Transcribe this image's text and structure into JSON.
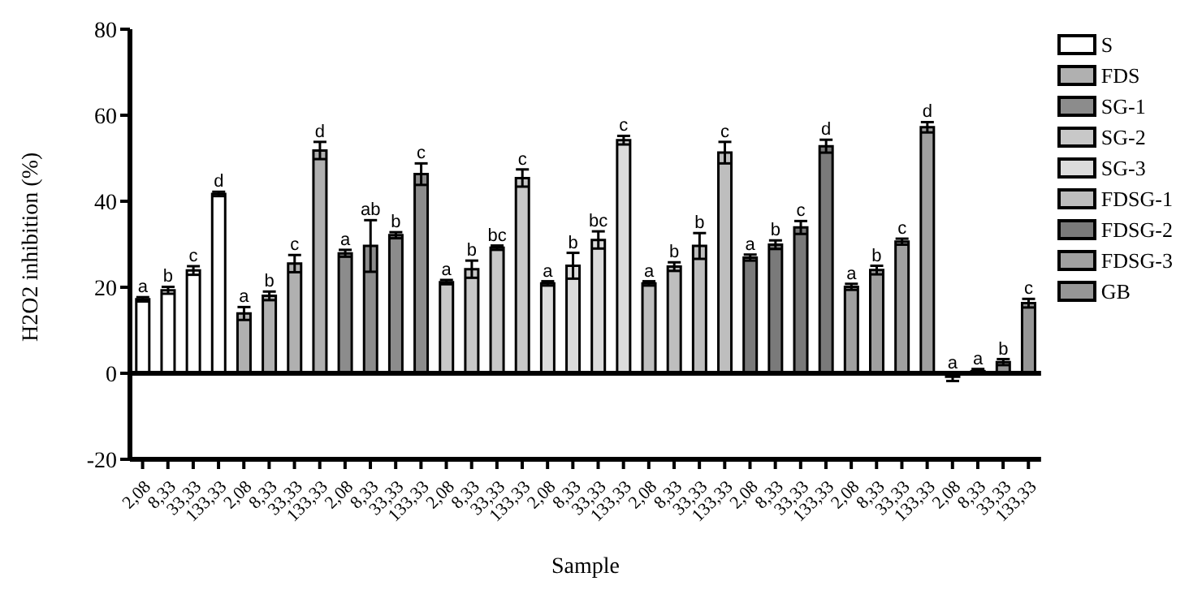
{
  "chart_data": {
    "type": "bar",
    "stacked": true,
    "xlabel": "Sample",
    "ylabel": "H2O2 inhibition (%)",
    "categories": [
      "2,08",
      "8,33",
      "33,33",
      "133,33",
      "2,08",
      "8,33",
      "33,33",
      "133,33",
      "2,08",
      "8,33",
      "33,33",
      "133,33",
      "2,08",
      "8,33",
      "33,33",
      "133,33",
      "2,08",
      "8,33",
      "33,33",
      "133,33",
      "2,08",
      "8,33",
      "33,33",
      "133,33",
      "2,08",
      "8,33",
      "33,33",
      "133,33",
      "2,08",
      "8,33",
      "33,33",
      "133,33",
      "2,08",
      "8,33",
      "33,33",
      "133,33"
    ],
    "ylim": [
      -20,
      80
    ],
    "yticks": [
      -20,
      0,
      20,
      40,
      60,
      80
    ],
    "grid": false,
    "legend": "top right",
    "ref_lines": [
      {
        "axis": "y",
        "value": 0
      }
    ],
    "series": [
      {
        "name": "S",
        "color": "#ffffff",
        "values": [
          17.2,
          19.3,
          23.9,
          41.7,
          null,
          null,
          null,
          null,
          null,
          null,
          null,
          null,
          null,
          null,
          null,
          null,
          null,
          null,
          null,
          null,
          null,
          null,
          null,
          null,
          null,
          null,
          null,
          null,
          null,
          null,
          null,
          null,
          null,
          null,
          null,
          null
        ],
        "errors": [
          0.5,
          0.8,
          1,
          0.5,
          null,
          null,
          null,
          null,
          null,
          null,
          null,
          null,
          null,
          null,
          null,
          null,
          null,
          null,
          null,
          null,
          null,
          null,
          null,
          null,
          null,
          null,
          null,
          null,
          null,
          null,
          null,
          null,
          null,
          null,
          null,
          null
        ],
        "value_labels": [
          "a",
          "b",
          "c",
          "d",
          null,
          null,
          null,
          null,
          null,
          null,
          null,
          null,
          null,
          null,
          null,
          null,
          null,
          null,
          null,
          null,
          null,
          null,
          null,
          null,
          null,
          null,
          null,
          null,
          null,
          null,
          null,
          null,
          null,
          null,
          null,
          null
        ]
      },
      {
        "name": "FDS",
        "color": "#b0b0b0",
        "values": [
          null,
          null,
          null,
          null,
          13.9,
          18.0,
          25.5,
          51.8,
          null,
          null,
          null,
          null,
          null,
          null,
          null,
          null,
          null,
          null,
          null,
          null,
          null,
          null,
          null,
          null,
          null,
          null,
          null,
          null,
          null,
          null,
          null,
          null,
          null,
          null,
          null,
          null
        ],
        "errors": [
          null,
          null,
          null,
          null,
          1.5,
          1,
          2,
          2,
          null,
          null,
          null,
          null,
          null,
          null,
          null,
          null,
          null,
          null,
          null,
          null,
          null,
          null,
          null,
          null,
          null,
          null,
          null,
          null,
          null,
          null,
          null,
          null,
          null,
          null,
          null,
          null
        ],
        "value_labels": [
          null,
          null,
          null,
          null,
          "a",
          "b",
          "c",
          "d",
          null,
          null,
          null,
          null,
          null,
          null,
          null,
          null,
          null,
          null,
          null,
          null,
          null,
          null,
          null,
          null,
          null,
          null,
          null,
          null,
          null,
          null,
          null,
          null,
          null,
          null,
          null,
          null
        ]
      },
      {
        "name": "SG-1",
        "color": "#8c8c8c",
        "values": [
          null,
          null,
          null,
          null,
          null,
          null,
          null,
          null,
          27.9,
          29.6,
          32.1,
          46.3,
          null,
          null,
          null,
          null,
          null,
          null,
          null,
          null,
          null,
          null,
          null,
          null,
          null,
          null,
          null,
          null,
          null,
          null,
          null,
          null,
          null,
          null,
          null,
          null
        ],
        "errors": [
          null,
          null,
          null,
          null,
          null,
          null,
          null,
          null,
          0.8,
          6,
          0.7,
          2.5,
          null,
          null,
          null,
          null,
          null,
          null,
          null,
          null,
          null,
          null,
          null,
          null,
          null,
          null,
          null,
          null,
          null,
          null,
          null,
          null,
          null,
          null,
          null,
          null
        ],
        "value_labels": [
          null,
          null,
          null,
          null,
          null,
          null,
          null,
          null,
          "a",
          "ab",
          "b",
          "c",
          null,
          null,
          null,
          null,
          null,
          null,
          null,
          null,
          null,
          null,
          null,
          null,
          null,
          null,
          null,
          null,
          null,
          null,
          null,
          null,
          null,
          null,
          null,
          null
        ]
      },
      {
        "name": "SG-2",
        "color": "#c8c8c8",
        "values": [
          null,
          null,
          null,
          null,
          null,
          null,
          null,
          null,
          null,
          null,
          null,
          null,
          21.2,
          24.2,
          29.2,
          45.4,
          null,
          null,
          null,
          null,
          null,
          null,
          null,
          null,
          null,
          null,
          null,
          null,
          null,
          null,
          null,
          null,
          null,
          null,
          null,
          null
        ],
        "errors": [
          null,
          null,
          null,
          null,
          null,
          null,
          null,
          null,
          null,
          null,
          null,
          null,
          0.5,
          2,
          0.5,
          2,
          null,
          null,
          null,
          null,
          null,
          null,
          null,
          null,
          null,
          null,
          null,
          null,
          null,
          null,
          null,
          null,
          null,
          null,
          null,
          null
        ],
        "value_labels": [
          null,
          null,
          null,
          null,
          null,
          null,
          null,
          null,
          null,
          null,
          null,
          null,
          "a",
          "b",
          "bc",
          "c",
          null,
          null,
          null,
          null,
          null,
          null,
          null,
          null,
          null,
          null,
          null,
          null,
          null,
          null,
          null,
          null,
          null,
          null,
          null,
          null
        ]
      },
      {
        "name": "SG-3",
        "color": "#dcdcdc",
        "values": [
          null,
          null,
          null,
          null,
          null,
          null,
          null,
          null,
          null,
          null,
          null,
          null,
          null,
          null,
          null,
          null,
          20.9,
          25.0,
          31.0,
          54.2,
          null,
          null,
          null,
          null,
          null,
          null,
          null,
          null,
          null,
          null,
          null,
          null,
          null,
          null,
          null,
          null
        ],
        "errors": [
          null,
          null,
          null,
          null,
          null,
          null,
          null,
          null,
          null,
          null,
          null,
          null,
          null,
          null,
          null,
          null,
          0.5,
          3,
          2,
          1,
          null,
          null,
          null,
          null,
          null,
          null,
          null,
          null,
          null,
          null,
          null,
          null,
          null,
          null,
          null,
          null
        ],
        "value_labels": [
          null,
          null,
          null,
          null,
          null,
          null,
          null,
          null,
          null,
          null,
          null,
          null,
          null,
          null,
          null,
          null,
          "a",
          "b",
          "bc",
          "c",
          null,
          null,
          null,
          null,
          null,
          null,
          null,
          null,
          null,
          null,
          null,
          null,
          null,
          null,
          null,
          null
        ]
      },
      {
        "name": "FDSG-1",
        "color": "#bebebe",
        "values": [
          null,
          null,
          null,
          null,
          null,
          null,
          null,
          null,
          null,
          null,
          null,
          null,
          null,
          null,
          null,
          null,
          null,
          null,
          null,
          null,
          20.9,
          24.8,
          29.6,
          51.3,
          null,
          null,
          null,
          null,
          null,
          null,
          null,
          null,
          null,
          null,
          null,
          null
        ],
        "errors": [
          null,
          null,
          null,
          null,
          null,
          null,
          null,
          null,
          null,
          null,
          null,
          null,
          null,
          null,
          null,
          null,
          null,
          null,
          null,
          null,
          0.5,
          1,
          3,
          2.5,
          null,
          null,
          null,
          null,
          null,
          null,
          null,
          null,
          null,
          null,
          null,
          null
        ],
        "value_labels": [
          null,
          null,
          null,
          null,
          null,
          null,
          null,
          null,
          null,
          null,
          null,
          null,
          null,
          null,
          null,
          null,
          null,
          null,
          null,
          null,
          "a",
          "b",
          "b",
          "c",
          null,
          null,
          null,
          null,
          null,
          null,
          null,
          null,
          null,
          null,
          null,
          null
        ]
      },
      {
        "name": "FDSG-2",
        "color": "#7a7a7a",
        "values": [
          null,
          null,
          null,
          null,
          null,
          null,
          null,
          null,
          null,
          null,
          null,
          null,
          null,
          null,
          null,
          null,
          null,
          null,
          null,
          null,
          null,
          null,
          null,
          null,
          26.9,
          29.9,
          33.9,
          52.8,
          null,
          null,
          null,
          null,
          null,
          null,
          null,
          null
        ],
        "errors": [
          null,
          null,
          null,
          null,
          null,
          null,
          null,
          null,
          null,
          null,
          null,
          null,
          null,
          null,
          null,
          null,
          null,
          null,
          null,
          null,
          null,
          null,
          null,
          null,
          0.7,
          1,
          1.5,
          1.5,
          null,
          null,
          null,
          null,
          null,
          null,
          null,
          null
        ],
        "value_labels": [
          null,
          null,
          null,
          null,
          null,
          null,
          null,
          null,
          null,
          null,
          null,
          null,
          null,
          null,
          null,
          null,
          null,
          null,
          null,
          null,
          null,
          null,
          null,
          null,
          "a",
          "b",
          "c",
          "d",
          null,
          null,
          null,
          null,
          null,
          null,
          null,
          null
        ]
      },
      {
        "name": "FDSG-3",
        "color": "#a0a0a0",
        "values": [
          null,
          null,
          null,
          null,
          null,
          null,
          null,
          null,
          null,
          null,
          null,
          null,
          null,
          null,
          null,
          null,
          null,
          null,
          null,
          null,
          null,
          null,
          null,
          null,
          null,
          null,
          null,
          null,
          20.1,
          24.0,
          30.6,
          57.2,
          null,
          null,
          null,
          null
        ],
        "errors": [
          null,
          null,
          null,
          null,
          null,
          null,
          null,
          null,
          null,
          null,
          null,
          null,
          null,
          null,
          null,
          null,
          null,
          null,
          null,
          null,
          null,
          null,
          null,
          null,
          null,
          null,
          null,
          null,
          0.7,
          1,
          0.7,
          1.2,
          null,
          null,
          null,
          null
        ],
        "value_labels": [
          null,
          null,
          null,
          null,
          null,
          null,
          null,
          null,
          null,
          null,
          null,
          null,
          null,
          null,
          null,
          null,
          null,
          null,
          null,
          null,
          null,
          null,
          null,
          null,
          null,
          null,
          null,
          null,
          "a",
          "b",
          "c",
          "d",
          null,
          null,
          null,
          null
        ]
      },
      {
        "name": "GB",
        "color": "#969696",
        "values": [
          null,
          null,
          null,
          null,
          null,
          null,
          null,
          null,
          null,
          null,
          null,
          null,
          null,
          null,
          null,
          null,
          null,
          null,
          null,
          null,
          null,
          null,
          null,
          null,
          null,
          null,
          null,
          null,
          null,
          null,
          null,
          null,
          -0.8,
          0.5,
          2.6,
          16.3
        ],
        "errors": [
          null,
          null,
          null,
          null,
          null,
          null,
          null,
          null,
          null,
          null,
          null,
          null,
          null,
          null,
          null,
          null,
          null,
          null,
          null,
          null,
          null,
          null,
          null,
          null,
          null,
          null,
          null,
          null,
          null,
          null,
          null,
          null,
          1,
          0.5,
          0.7,
          1
        ],
        "value_labels": [
          null,
          null,
          null,
          null,
          null,
          null,
          null,
          null,
          null,
          null,
          null,
          null,
          null,
          null,
          null,
          null,
          null,
          null,
          null,
          null,
          null,
          null,
          null,
          null,
          null,
          null,
          null,
          null,
          null,
          null,
          null,
          null,
          "a",
          "a",
          "b",
          "c"
        ]
      }
    ]
  }
}
